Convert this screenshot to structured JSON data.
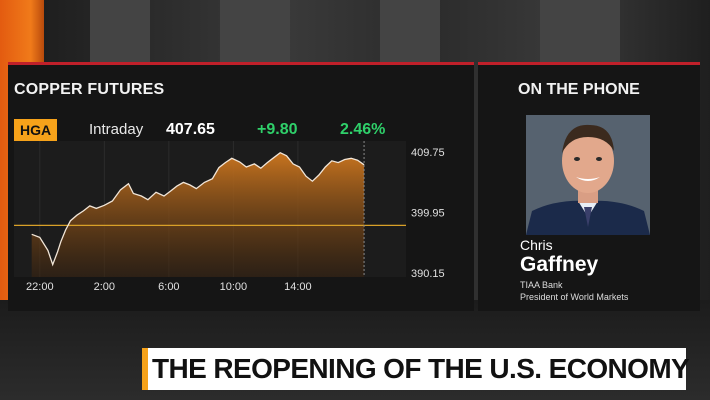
{
  "chart_panel": {
    "title": "COPPER FUTURES",
    "ticker": "HGA",
    "period": "Intraday",
    "last": "407.65",
    "change": "+9.80",
    "change_pct": "2.46%"
  },
  "guest_panel": {
    "title": "ON THE PHONE",
    "first_name": "Chris",
    "last_name": "Gaffney",
    "organization": "TIAA Bank",
    "role": "President of World Markets"
  },
  "lower_third": {
    "headline": "THE REOPENING OF THE U.S. ECONOMY"
  },
  "colors": {
    "accent_red": "#c0202a",
    "ticker_orange": "#f6a21a",
    "positive_green": "#2fd06a",
    "area_top": "#c8741f",
    "reference_line": "#d8a028"
  },
  "chart_data": {
    "type": "area",
    "title": "COPPER FUTURES",
    "x_tick_labels": [
      "22:00",
      "2:00",
      "6:00",
      "10:00",
      "14:00"
    ],
    "y_tick_labels": [
      "409.75",
      "399.95",
      "390.15"
    ],
    "ylim": [
      389.5,
      411.5
    ],
    "reference_value": 397.85,
    "x_hours_from_start": [
      0,
      0.5,
      1,
      1.3,
      1.6,
      1.8,
      2.1,
      2.4,
      2.8,
      3.2,
      3.6,
      4.0,
      4.5,
      5.0,
      5.5,
      6.0,
      6.3,
      6.8,
      7.2,
      7.7,
      8.2,
      8.6,
      9.0,
      9.4,
      9.8,
      10.2,
      10.7,
      11.2,
      11.6,
      12.0,
      12.4,
      12.9,
      13.3,
      13.8,
      14.2,
      14.6,
      15.0,
      15.4,
      15.8,
      16.2,
      16.6,
      17.0,
      17.4,
      17.8,
      18.2,
      18.6,
      19.0,
      19.4,
      19.8,
      20.2,
      20.6
    ],
    "values": [
      396.4,
      395.9,
      393.8,
      391.5,
      393.6,
      395.2,
      397.1,
      398.6,
      399.5,
      400.2,
      401.0,
      400.6,
      401.1,
      401.8,
      403.6,
      404.6,
      403.0,
      402.6,
      402.0,
      403.2,
      402.6,
      403.4,
      404.2,
      404.8,
      404.4,
      403.8,
      404.8,
      405.4,
      407.2,
      408.0,
      408.7,
      408.1,
      407.3,
      407.8,
      407.1,
      408.0,
      408.8,
      409.6,
      409.1,
      407.8,
      407.3,
      405.8,
      405.0,
      406.0,
      407.3,
      408.3,
      408.0,
      408.5,
      408.7,
      408.4,
      407.65
    ]
  }
}
